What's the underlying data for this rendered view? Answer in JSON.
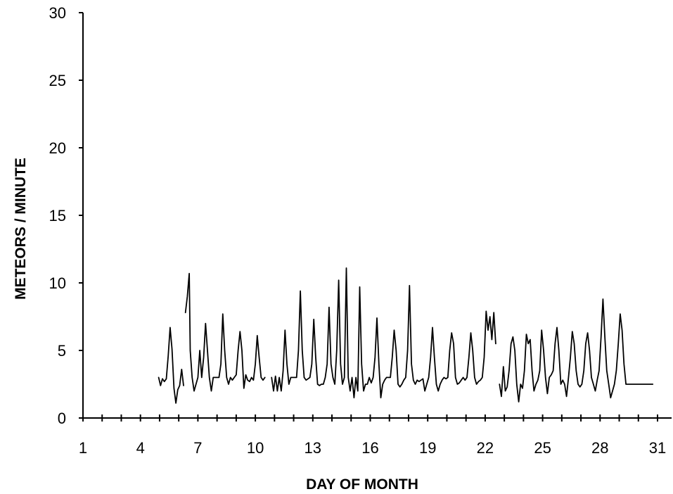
{
  "chart_data": {
    "type": "line",
    "title": "",
    "xlabel": "DAY OF MONTH",
    "ylabel": "METEORS / MINUTE",
    "xlim": [
      1,
      31.5
    ],
    "ylim": [
      0,
      30
    ],
    "x_ticks": [
      1,
      4,
      7,
      10,
      13,
      16,
      19,
      22,
      25,
      28,
      31
    ],
    "y_ticks": [
      0,
      5,
      10,
      15,
      20,
      25,
      30
    ],
    "grid": false,
    "legend": "none",
    "colors": {
      "line": "#000000",
      "axis": "#000000"
    },
    "series": [
      {
        "segment": 1,
        "x": [
          4.95,
          5.05,
          5.15,
          5.25,
          5.35,
          5.45,
          5.55,
          5.65,
          5.75,
          5.85,
          5.95,
          6.05,
          6.15,
          6.25
        ],
        "y": [
          3.0,
          2.4,
          2.9,
          2.7,
          2.9,
          4.6,
          6.7,
          5.1,
          2.2,
          1.1,
          2.1,
          2.4,
          3.6,
          2.4
        ]
      },
      {
        "segment": 2,
        "x": [
          6.35,
          6.45,
          6.55,
          6.6,
          6.7,
          6.8,
          6.9,
          7.0,
          7.1,
          7.2,
          7.3,
          7.4,
          7.5,
          7.6,
          7.7,
          7.8,
          7.9,
          8.0,
          8.1,
          8.2,
          8.3,
          8.4,
          8.5,
          8.6,
          8.7,
          8.8,
          8.9,
          9.0,
          9.1,
          9.2,
          9.3,
          9.4,
          9.5,
          9.6,
          9.7,
          9.8,
          9.9,
          10.0,
          10.1,
          10.2,
          10.3,
          10.4,
          10.5
        ],
        "y": [
          7.8,
          9.0,
          10.7,
          5.0,
          3.0,
          2.0,
          2.5,
          3.0,
          5.0,
          3.0,
          4.5,
          7.0,
          5.0,
          3.0,
          2.0,
          3.0,
          3.0,
          3.0,
          3.0,
          4.0,
          7.7,
          5.0,
          3.0,
          2.5,
          3.0,
          2.8,
          3.0,
          3.2,
          5.0,
          6.4,
          5.0,
          2.2,
          3.2,
          2.8,
          2.7,
          3.0,
          2.8,
          4.0,
          6.1,
          4.5,
          3.0,
          2.8,
          3.0
        ]
      },
      {
        "segment": 3,
        "x": [
          10.85,
          10.95,
          11.05,
          11.15,
          11.25,
          11.35,
          11.45,
          11.55,
          11.65,
          11.75,
          11.85,
          11.95,
          12.05,
          12.15,
          12.25,
          12.35,
          12.45,
          12.55,
          12.65,
          12.75,
          12.85,
          12.95,
          13.05,
          13.15,
          13.25,
          13.35,
          13.45,
          13.55,
          13.65,
          13.75,
          13.85,
          13.95,
          14.05,
          14.15,
          14.25,
          14.35,
          14.45,
          14.55,
          14.65,
          14.75,
          14.85,
          14.95,
          15.05,
          15.15,
          15.25,
          15.35,
          15.45,
          15.55,
          15.65,
          15.75,
          15.85,
          15.95,
          16.05,
          16.15,
          16.25,
          16.35,
          16.45,
          16.55,
          16.65,
          16.75,
          16.85,
          16.95,
          17.05,
          17.15,
          17.25,
          17.35,
          17.45,
          17.55,
          17.65,
          17.75,
          17.85,
          17.95,
          18.05,
          18.15,
          18.25,
          18.35,
          18.45,
          18.55,
          18.65,
          18.75,
          18.85,
          18.95,
          19.05,
          19.15,
          19.25,
          19.35,
          19.45,
          19.55,
          19.65,
          19.75,
          19.85,
          19.95,
          20.05,
          20.15,
          20.25,
          20.35,
          20.45,
          20.55,
          20.65,
          20.75,
          20.85,
          20.95,
          21.05,
          21.15,
          21.25,
          21.35,
          21.45,
          21.55,
          21.65,
          21.75,
          21.85,
          21.95,
          22.05,
          22.15,
          22.25,
          22.35,
          22.45,
          22.55
        ],
        "y": [
          3.0,
          2.0,
          3.1,
          2.0,
          3.0,
          2.0,
          3.5,
          6.5,
          4.0,
          2.5,
          3.0,
          3.0,
          3.0,
          3.0,
          5.0,
          9.4,
          5.0,
          3.0,
          2.8,
          2.9,
          3.0,
          4.0,
          7.3,
          4.5,
          2.5,
          2.4,
          2.5,
          2.5,
          3.0,
          4.0,
          8.2,
          4.0,
          3.0,
          2.5,
          5.0,
          10.2,
          4.0,
          2.5,
          3.0,
          11.1,
          3.0,
          2.0,
          3.0,
          1.5,
          3.0,
          2.0,
          9.7,
          4.0,
          2.0,
          2.5,
          2.5,
          3.0,
          2.6,
          3.0,
          4.5,
          7.4,
          4.0,
          1.5,
          2.5,
          2.8,
          3.0,
          3.0,
          3.0,
          4.5,
          6.5,
          5.0,
          2.5,
          2.3,
          2.5,
          2.8,
          3.0,
          5.0,
          9.8,
          4.0,
          2.8,
          2.5,
          2.8,
          2.7,
          2.8,
          2.9,
          2.0,
          2.5,
          3.0,
          4.5,
          6.7,
          4.5,
          2.5,
          2.0,
          2.5,
          2.8,
          3.0,
          2.9,
          3.0,
          5.0,
          6.3,
          5.5,
          3.0,
          2.5,
          2.6,
          2.8,
          3.0,
          2.8,
          3.0,
          4.5,
          6.3,
          5.0,
          3.0,
          2.5,
          2.7,
          2.8,
          3.0,
          4.5,
          7.9,
          6.5,
          7.5,
          5.8,
          7.8,
          5.5
        ]
      },
      {
        "segment": 4,
        "x": [
          22.75,
          22.85,
          22.95,
          23.05,
          23.15,
          23.25,
          23.35,
          23.45,
          23.55,
          23.65,
          23.75,
          23.85,
          23.95,
          24.05,
          24.15,
          24.25,
          24.35,
          24.45,
          24.55,
          24.65,
          24.75,
          24.85,
          24.95,
          25.05,
          25.15,
          25.25,
          25.35,
          25.45,
          25.55,
          25.65,
          25.75,
          25.85,
          25.95,
          26.05,
          26.15,
          26.25,
          26.35,
          26.45,
          26.55,
          26.65,
          26.75,
          26.85,
          26.95,
          27.05,
          27.15,
          27.25,
          27.35,
          27.45,
          27.55,
          27.65,
          27.75,
          27.85,
          27.95,
          28.05,
          28.15,
          28.25,
          28.35,
          28.45,
          28.55,
          28.65,
          28.75,
          28.85,
          28.95,
          29.05,
          29.15,
          29.25,
          29.35,
          29.45,
          29.55,
          29.65,
          29.75,
          29.85,
          29.95,
          30.05,
          30.15,
          30.25,
          30.35,
          30.45,
          30.55,
          30.65,
          30.75
        ],
        "y": [
          2.5,
          1.6,
          3.8,
          2.0,
          2.3,
          3.5,
          5.5,
          6.0,
          5.0,
          2.5,
          1.2,
          2.5,
          2.2,
          3.5,
          6.2,
          5.5,
          5.8,
          3.5,
          2.0,
          2.5,
          2.8,
          3.5,
          6.5,
          5.0,
          3.0,
          1.8,
          3.0,
          3.2,
          3.5,
          5.5,
          6.7,
          5.0,
          2.5,
          2.8,
          2.5,
          1.6,
          3.0,
          4.5,
          6.4,
          5.5,
          3.5,
          2.5,
          2.3,
          2.5,
          3.5,
          5.5,
          6.3,
          5.0,
          3.0,
          2.5,
          2.0,
          2.8,
          3.5,
          6.0,
          8.8,
          6.0,
          3.5,
          2.5,
          1.5,
          2.0,
          2.5,
          3.5,
          5.5,
          7.7,
          6.5,
          4.0,
          2.5,
          2.5,
          2.5,
          2.5,
          2.5,
          2.5,
          2.5,
          2.5,
          2.5,
          2.5,
          2.5,
          2.5,
          2.5,
          2.5,
          2.5
        ]
      }
    ]
  }
}
